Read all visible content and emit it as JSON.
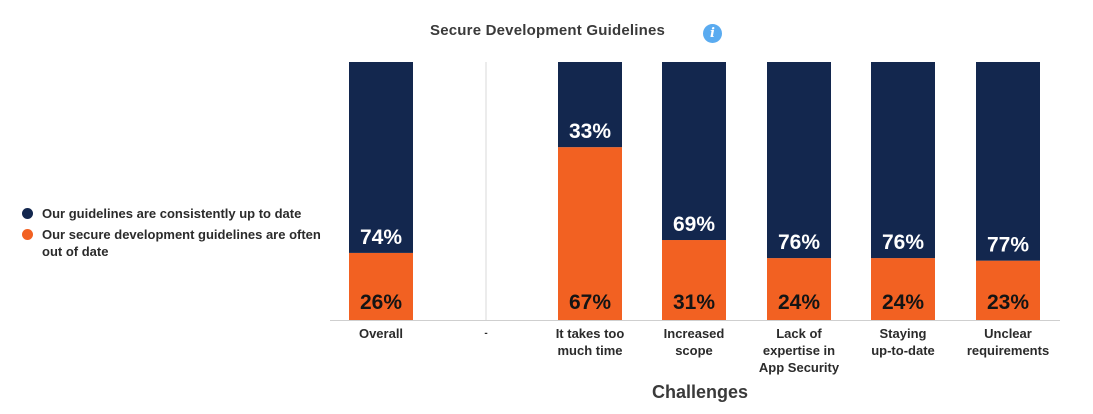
{
  "chart_data": {
    "type": "bar",
    "stacked": true,
    "title": "Secure Development Guidelines",
    "xlabel": "Challenges",
    "ylabel": "",
    "ylim": [
      0,
      100
    ],
    "categories": [
      "Overall",
      "-",
      "It takes too much time",
      "Increased scope",
      "Lack of expertise in App Security",
      "Staying up-to-date",
      "Unclear requirements"
    ],
    "series": [
      {
        "name": "Our secure development guidelines are often out of date",
        "color": "#f26122",
        "values": [
          26,
          null,
          67,
          31,
          24,
          24,
          23
        ],
        "labels": [
          "26%",
          "",
          "67%",
          "31%",
          "24%",
          "24%",
          "23%"
        ]
      },
      {
        "name": "Our guidelines are consistently up to date",
        "color": "#13274e",
        "values": [
          74,
          null,
          33,
          69,
          76,
          76,
          77
        ],
        "labels": [
          "74%",
          "",
          "33%",
          "69%",
          "76%",
          "76%",
          "77%"
        ]
      }
    ],
    "legend_position": "left",
    "grid": false
  },
  "category_labels": [
    [
      "Overall"
    ],
    [
      "-"
    ],
    [
      "It takes too",
      "much time"
    ],
    [
      "Increased",
      "scope"
    ],
    [
      "Lack of",
      "expertise in",
      "App Security"
    ],
    [
      "Staying",
      "up-to-date"
    ],
    [
      "Unclear",
      "requirements"
    ]
  ],
  "legend": [
    {
      "label": "Our guidelines are consistently up to date",
      "color": "#13274e"
    },
    {
      "label": "Our secure development guidelines are often out of date",
      "color": "#f26122"
    }
  ],
  "info_icon": "info-icon"
}
